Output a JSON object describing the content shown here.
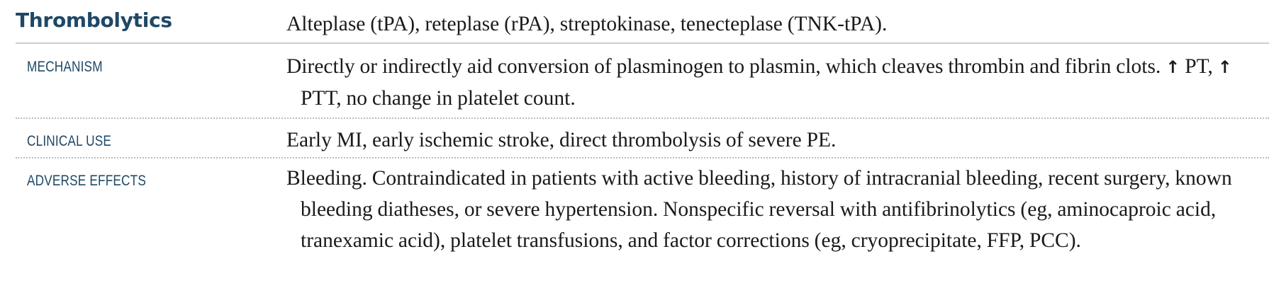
{
  "header": {
    "title": "Thrombolytics",
    "drugs": "Alteplase (tPA), reteplase (rPA), streptokinase, tenecteplase (TNK-tPA)."
  },
  "rows": [
    {
      "label": "MECHANISM",
      "text_part1": "Directly or indirectly aid conversion of plasminogen to plasmin, which cleaves thrombin and fibrin clots.",
      "arrow1": "↑",
      "text_part2": "PT,",
      "arrow2": "↑",
      "text_part3": "PTT, no change in platelet count."
    },
    {
      "label": "CLINICAL USE",
      "text": "Early MI, early ischemic stroke, direct thrombolysis of severe PE."
    },
    {
      "label": "ADVERSE EFFECTS",
      "text": "Bleeding. Contraindicated in patients with active bleeding, history of intracranial bleeding, recent surgery, known bleeding diatheses, or severe hypertension. Nonspecific reversal with antifibrinolytics (eg, aminocaproic acid, tranexamic acid), platelet transfusions, and factor corrections (eg, cryoprecipitate, FFP, PCC)."
    }
  ],
  "colors": {
    "heading": "#1f4866",
    "body_text": "#1a1a1a",
    "solid_rule": "#c9cfd4",
    "dotted_rule": "#b8bcc0"
  }
}
